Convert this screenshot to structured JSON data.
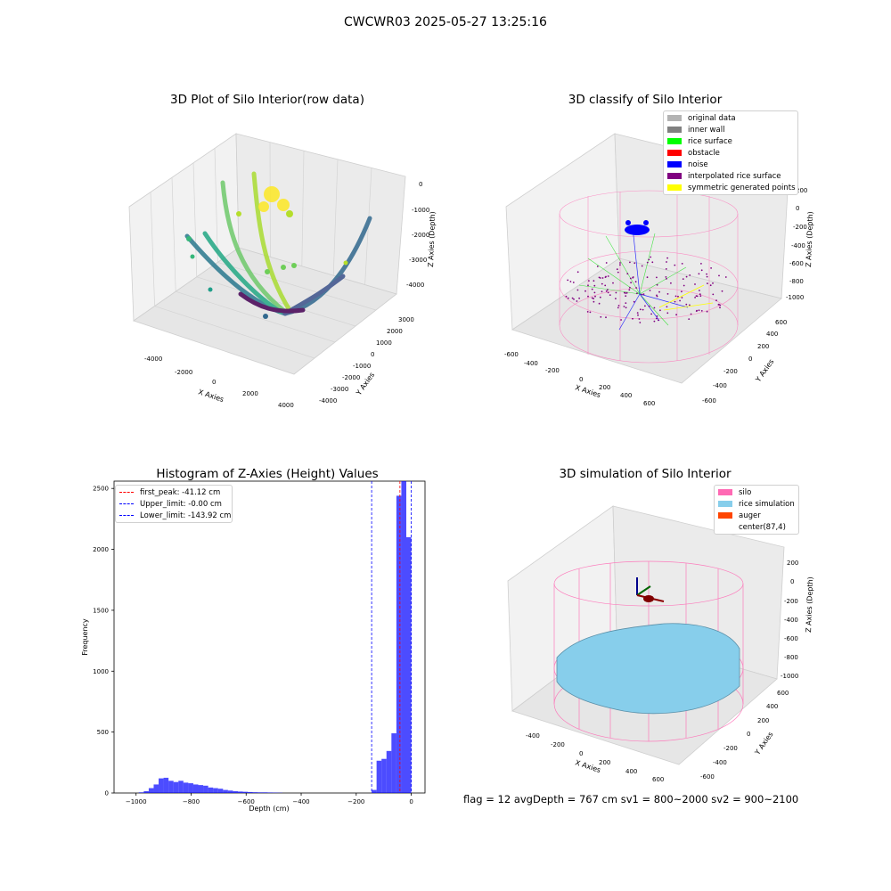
{
  "figure": {
    "title": "CWCWR03 2025-05-27 13:25:16"
  },
  "status_line": "flag = 12   avgDepth = 767 cm  sv1 = 800~2000  sv2 = 900~2100",
  "chart_data": [
    {
      "type": "scatter3d",
      "title": "3D Plot of Silo Interior(row data)",
      "xlabel": "X Axies",
      "ylabel": "Y Axies",
      "zlabel": "Z Axies (Depth)",
      "x_ticks": [
        "-4000",
        "-2000",
        "0",
        "2000",
        "4000"
      ],
      "y_ticks": [
        "3000",
        "2000",
        "1000",
        "0",
        "-1000",
        "-2000",
        "-3000",
        "-4000"
      ],
      "z_ticks": [
        "0",
        "-1000",
        "-2000",
        "-3000",
        "-4000"
      ],
      "xlim": [
        -4500,
        4500
      ],
      "ylim": [
        -4500,
        3500
      ],
      "zlim": [
        -4500,
        0
      ],
      "colormap": "viridis",
      "grid": true
    },
    {
      "type": "scatter3d",
      "title": "3D classify of Silo Interior",
      "xlabel": "X Axies",
      "ylabel": "Y Axies",
      "zlabel": "Z Axies (Depth)",
      "x_ticks": [
        "-600",
        "-400",
        "-200",
        "0",
        "200",
        "400",
        "600"
      ],
      "y_ticks": [
        "600",
        "400",
        "200",
        "0",
        "-200",
        "-400",
        "-600"
      ],
      "z_ticks": [
        "200",
        "0",
        "-200",
        "-400",
        "-600",
        "-800",
        "-1000"
      ],
      "xlim": [
        -650,
        650
      ],
      "ylim": [
        -650,
        650
      ],
      "zlim": [
        -1100,
        250
      ],
      "legend": {
        "position": "top-right",
        "entries": [
          {
            "label": "original data",
            "color": "#b3b3b3"
          },
          {
            "label": "inner wall",
            "color": "#808080"
          },
          {
            "label": "rice surface",
            "color": "#00ff00"
          },
          {
            "label": "obstacle",
            "color": "#ff0000"
          },
          {
            "label": "noise",
            "color": "#0000ff"
          },
          {
            "label": "interpolated rice surface",
            "color": "#800080"
          },
          {
            "label": "symmetric generated points",
            "color": "#ffff00"
          }
        ]
      },
      "grid": true
    },
    {
      "type": "histogram",
      "title": "Histogram of Z-Axies (Height) Values",
      "xlabel": "Depth (cm)",
      "ylabel": "Frequency",
      "xlim": [
        -1080,
        50
      ],
      "ylim": [
        0,
        2560
      ],
      "x_ticks": [
        -1000,
        -800,
        -600,
        -400,
        -200,
        0
      ],
      "y_ticks": [
        0,
        500,
        1000,
        1500,
        2000,
        2500
      ],
      "bar_color": "#0000ff",
      "bin_width": 18,
      "bin_starts": [
        -990,
        -972,
        -954,
        -936,
        -918,
        -900,
        -882,
        -864,
        -846,
        -828,
        -810,
        -792,
        -774,
        -756,
        -738,
        -720,
        -702,
        -684,
        -666,
        -648,
        -630,
        -612,
        -594,
        -576,
        -558,
        -540,
        -522,
        -504,
        -486,
        -144,
        -126,
        -108,
        -90,
        -72,
        -54,
        -36,
        -18
      ],
      "counts": [
        5,
        15,
        40,
        70,
        120,
        125,
        100,
        90,
        100,
        85,
        80,
        70,
        65,
        60,
        45,
        40,
        35,
        25,
        20,
        15,
        12,
        10,
        8,
        6,
        5,
        5,
        4,
        3,
        2,
        25,
        265,
        280,
        345,
        490,
        2440,
        2560,
        2100
      ],
      "lines": [
        {
          "label": "first_peak: -41.12 cm",
          "x": -41.12,
          "color": "#ff0000"
        },
        {
          "label": "Upper_limit: -0.00 cm",
          "x": 0,
          "color": "#0000ff"
        },
        {
          "label": "Lower_limit: -143.92 cm",
          "x": -143.92,
          "color": "#0000ff"
        }
      ],
      "legend_position": "top-left"
    },
    {
      "type": "surface3d",
      "title": "3D simulation of Silo Interior",
      "xlabel": "X Axies",
      "ylabel": "Y Axies",
      "zlabel": "Z Axies (Depth)",
      "x_ticks": [
        "-400",
        "-200",
        "0",
        "200",
        "400",
        "600"
      ],
      "y_ticks": [
        "600",
        "400",
        "200",
        "0",
        "-200",
        "-400",
        "-600"
      ],
      "z_ticks": [
        "200",
        "0",
        "-200",
        "-400",
        "-600",
        "-800",
        "-1000"
      ],
      "xlim": [
        -550,
        700
      ],
      "ylim": [
        -650,
        650
      ],
      "zlim": [
        -1050,
        250
      ],
      "legend": {
        "position": "top-right",
        "entries": [
          {
            "label": "silo",
            "color": "#ff69b4"
          },
          {
            "label": "rice simulation",
            "color": "#87ceeb"
          },
          {
            "label": "auger",
            "color": "#ff4500"
          },
          {
            "label": "center(87,4)",
            "color": ""
          }
        ]
      },
      "grid": true
    }
  ]
}
